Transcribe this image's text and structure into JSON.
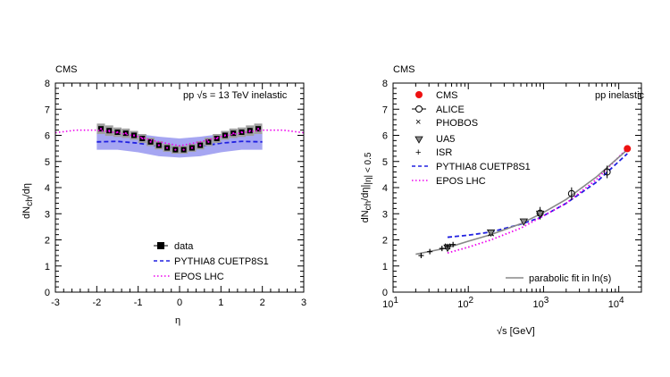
{
  "chart_data": [
    {
      "type": "scatter",
      "experiment": "CMS",
      "annotation_prefix": "pp",
      "annotation_sqrt": "√s",
      "annotation_suffix": "= 13 TeV inelastic",
      "xlabel": "η",
      "ylabel": "dN",
      "ylabel_sub": "ch",
      "ylabel_tail": "/dη",
      "xlim": [
        -3,
        3
      ],
      "ylim": [
        0,
        8
      ],
      "xticks": [
        "-3",
        "-2",
        "-1",
        "0",
        "1",
        "2",
        "3"
      ],
      "yticks": [
        "0",
        "1",
        "2",
        "3",
        "4",
        "5",
        "6",
        "7",
        "8"
      ],
      "legend": {
        "position": "bottom-center",
        "data": "data",
        "pythia_sc": "PYTHIA8",
        "pythia_tune": "CUETP8S1",
        "epos_sc": "EPOS",
        "epos_tune": "LHC"
      },
      "series": [
        {
          "name": "data",
          "x": [
            -1.9,
            -1.7,
            -1.5,
            -1.3,
            -1.1,
            -0.9,
            -0.7,
            -0.5,
            -0.3,
            -0.1,
            0.1,
            0.3,
            0.5,
            0.7,
            0.9,
            1.1,
            1.3,
            1.5,
            1.7,
            1.9
          ],
          "y": [
            6.25,
            6.18,
            6.12,
            6.08,
            6.0,
            5.88,
            5.75,
            5.62,
            5.52,
            5.45,
            5.45,
            5.52,
            5.62,
            5.75,
            5.88,
            6.0,
            6.08,
            6.12,
            6.18,
            6.25
          ],
          "err": [
            0.2,
            0.2,
            0.18,
            0.18,
            0.17,
            0.17,
            0.16,
            0.16,
            0.15,
            0.15,
            0.15,
            0.15,
            0.16,
            0.16,
            0.17,
            0.17,
            0.18,
            0.18,
            0.2,
            0.2
          ]
        },
        {
          "name": "PYTHIA8 CUETP8S1",
          "style": "dashed",
          "color": "#2020e0",
          "x": [
            -2,
            -1.5,
            -1,
            -0.5,
            0,
            0.5,
            1,
            1.5,
            2
          ],
          "y": [
            5.75,
            5.77,
            5.7,
            5.58,
            5.5,
            5.58,
            5.7,
            5.77,
            5.75
          ],
          "band_low": [
            5.45,
            5.45,
            5.35,
            5.2,
            5.15,
            5.2,
            5.35,
            5.45,
            5.45
          ],
          "band_high": [
            6.1,
            6.12,
            6.05,
            5.95,
            5.88,
            5.95,
            6.05,
            6.12,
            6.1
          ]
        },
        {
          "name": "EPOS LHC",
          "style": "dotted",
          "color": "#ee00ee",
          "x": [
            -3,
            -2.5,
            -2,
            -1.5,
            -1,
            -0.5,
            0,
            0.5,
            1,
            1.5,
            2,
            2.5,
            3
          ],
          "y": [
            6.1,
            6.2,
            6.2,
            6.1,
            5.95,
            5.75,
            5.6,
            5.75,
            5.95,
            6.1,
            6.2,
            6.2,
            6.1
          ]
        }
      ]
    },
    {
      "type": "scatter",
      "experiment": "CMS",
      "annotation": "pp inelastic",
      "xlabel": "√s [GeV]",
      "ylabel_main": "dN",
      "ylabel_ch": "ch",
      "ylabel_mid": "/dη|",
      "ylabel_cut": "|η| < 0.5",
      "xscale": "log",
      "xlim": [
        10,
        20000
      ],
      "ylim": [
        0,
        8
      ],
      "xticks": [
        {
          "base": "10",
          "exp": "1"
        },
        {
          "base": "10",
          "exp": "2"
        },
        {
          "base": "10",
          "exp": "3"
        },
        {
          "base": "10",
          "exp": "4"
        }
      ],
      "yticks": [
        "0",
        "1",
        "2",
        "3",
        "4",
        "5",
        "6",
        "7",
        "8"
      ],
      "legend": {
        "position": "top-left",
        "cms": "CMS",
        "alice": "ALICE",
        "phobos": "PHOBOS",
        "ua5": "UA5",
        "isr": "ISR",
        "pythia_sc": "PYTHIA8",
        "pythia_tune": "CUETP8S1",
        "epos_sc": "EPOS",
        "epos_tune": "LHC",
        "fit": "parabolic fit in ln(s)"
      },
      "series": [
        {
          "name": "CMS",
          "marker": "filled-circle",
          "color": "#ee1111",
          "x": [
            13000
          ],
          "y": [
            5.49
          ]
        },
        {
          "name": "ALICE",
          "marker": "open-circle",
          "x": [
            900,
            2360,
            7000
          ],
          "y": [
            3.02,
            3.77,
            4.6
          ]
        },
        {
          "name": "PHOBOS",
          "marker": "cross",
          "x": [
            53,
            200
          ],
          "y": [
            1.75,
            2.25
          ]
        },
        {
          "name": "UA5",
          "marker": "triangle-down",
          "x": [
            53,
            200,
            546,
            900
          ],
          "y": [
            1.7,
            2.28,
            2.7,
            3.0
          ]
        },
        {
          "name": "ISR",
          "marker": "plus",
          "x": [
            23.6,
            30.8,
            44.7,
            53,
            62.7
          ],
          "y": [
            1.4,
            1.55,
            1.67,
            1.75,
            1.82
          ]
        },
        {
          "name": "PYTHIA8 CUETP8S1",
          "style": "dashed",
          "color": "#2020e0",
          "x": [
            53,
            100,
            200,
            500,
            900,
            2000,
            5000,
            13000
          ],
          "y": [
            2.1,
            2.18,
            2.3,
            2.6,
            2.85,
            3.4,
            4.2,
            5.3
          ]
        },
        {
          "name": "EPOS LHC",
          "style": "dotted",
          "color": "#ee00ee",
          "x": [
            53,
            100,
            200,
            500,
            900,
            2000,
            5000,
            13000
          ],
          "y": [
            1.5,
            1.72,
            2.0,
            2.45,
            2.85,
            3.4,
            4.3,
            5.5
          ]
        },
        {
          "name": "parabolic fit in ln(s)",
          "style": "solid",
          "color": "#888888",
          "x": [
            20,
            50,
            100,
            200,
            500,
            1000,
            2000,
            5000,
            13000
          ],
          "y": [
            1.45,
            1.68,
            1.95,
            2.2,
            2.62,
            3.05,
            3.55,
            4.4,
            5.45
          ]
        }
      ]
    }
  ]
}
